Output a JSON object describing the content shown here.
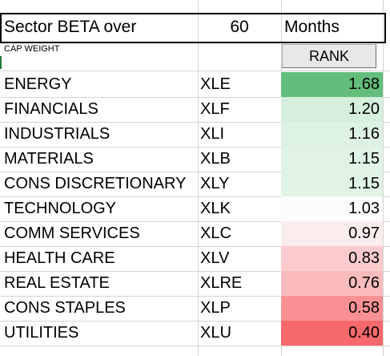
{
  "header": {
    "title": "Sector BETA  over",
    "period_value": "60",
    "period_unit": "Months"
  },
  "cap_weight_label": "CAP WEIGHT",
  "rank_button_label": "RANK",
  "rows": [
    {
      "sector": "ENERGY",
      "ticker": "XLE",
      "beta": "1.68",
      "color": "#63be7b"
    },
    {
      "sector": "FINANCIALS",
      "ticker": "XLF",
      "beta": "1.20",
      "color": "#d6efdd"
    },
    {
      "sector": "INDUSTRIALS",
      "ticker": "XLI",
      "beta": "1.16",
      "color": "#def2e3"
    },
    {
      "sector": "MATERIALS",
      "ticker": "XLB",
      "beta": "1.15",
      "color": "#e0f3e5"
    },
    {
      "sector": "CONS DISCRETIONARY",
      "ticker": "XLY",
      "beta": "1.15",
      "color": "#e0f3e5"
    },
    {
      "sector": "TECHNOLOGY",
      "ticker": "XLK",
      "beta": "1.03",
      "color": "#fbfdfc"
    },
    {
      "sector": "COMM SERVICES",
      "ticker": "XLC",
      "beta": "0.97",
      "color": "#fbecee"
    },
    {
      "sector": "HEALTH CARE",
      "ticker": "XLV",
      "beta": "0.83",
      "color": "#fbcbcd"
    },
    {
      "sector": "REAL ESTATE",
      "ticker": "XLRE",
      "beta": "0.76",
      "color": "#fbbbbd"
    },
    {
      "sector": "CONS STAPLES",
      "ticker": "XLP",
      "beta": "0.58",
      "color": "#f99194"
    },
    {
      "sector": "UTILITIES",
      "ticker": "XLU",
      "beta": "0.40",
      "color": "#f8696b"
    }
  ]
}
